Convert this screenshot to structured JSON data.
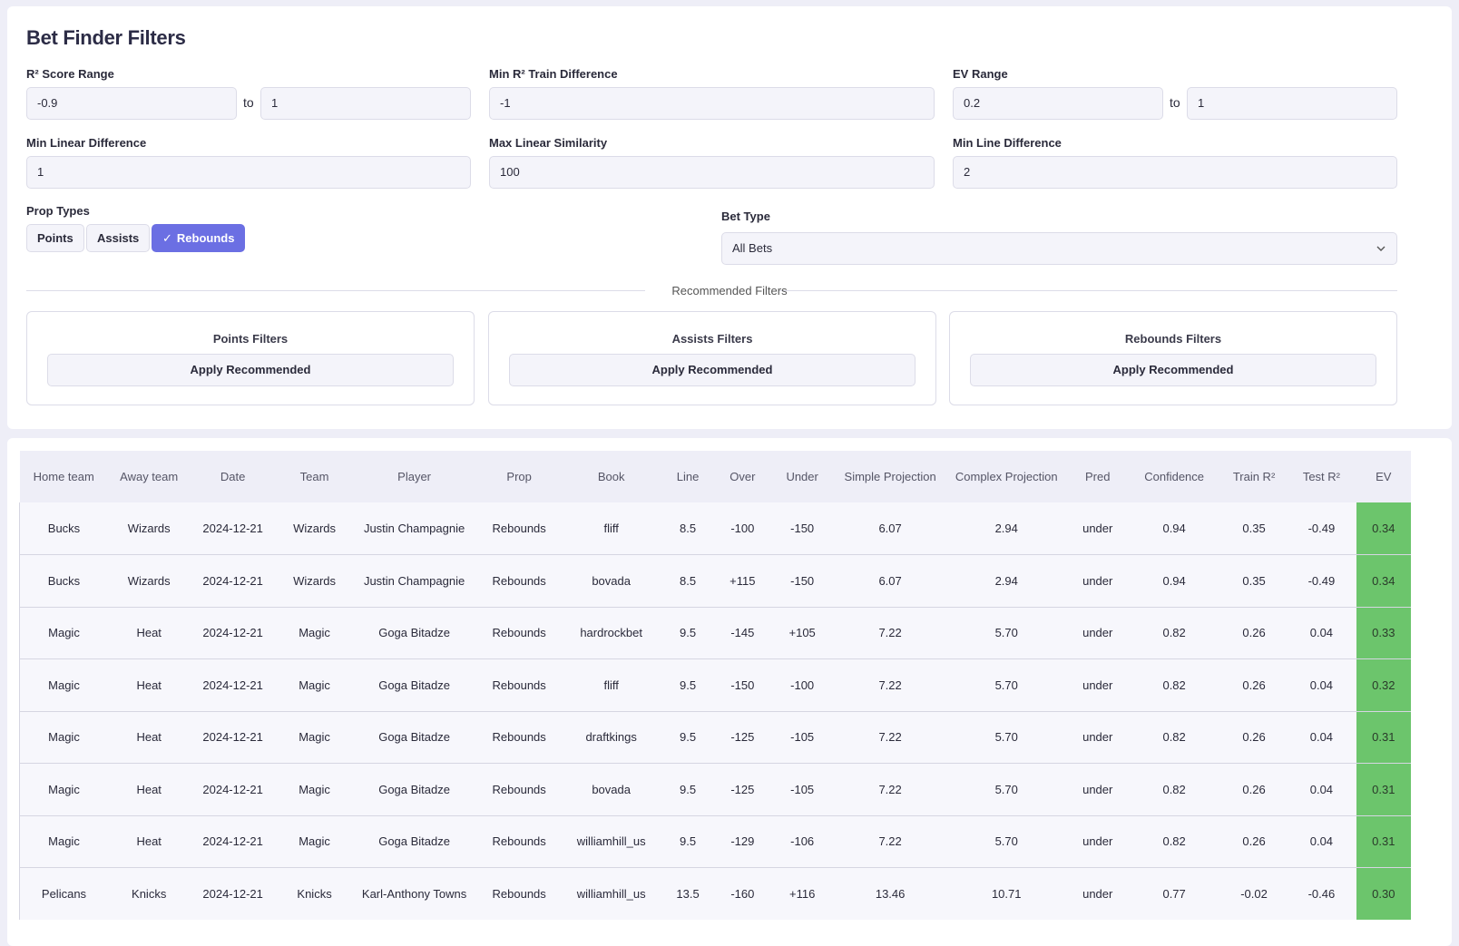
{
  "filters": {
    "title": "Bet Finder Filters",
    "r2_range": {
      "label": "R² Score Range",
      "min": "-0.9",
      "sep": "to",
      "max": "1"
    },
    "min_r2_train_diff": {
      "label": "Min R² Train Difference",
      "value": "-1"
    },
    "ev_range": {
      "label": "EV Range",
      "min": "0.2",
      "sep": "to",
      "max": "1"
    },
    "min_linear_diff": {
      "label": "Min Linear Difference",
      "value": "1"
    },
    "max_linear_sim": {
      "label": "Max Linear Similarity",
      "value": "100"
    },
    "min_line_diff": {
      "label": "Min Line Difference",
      "value": "2"
    },
    "prop_types": {
      "label": "Prop Types",
      "options": [
        {
          "label": "Points",
          "active": false
        },
        {
          "label": "Assists",
          "active": false
        },
        {
          "label": "Rebounds",
          "active": true
        }
      ]
    },
    "bet_type": {
      "label": "Bet Type",
      "value": "All Bets"
    },
    "recommended": {
      "heading": "Recommended Filters",
      "cards": [
        {
          "title": "Points Filters",
          "button": "Apply Recommended"
        },
        {
          "title": "Assists Filters",
          "button": "Apply Recommended"
        },
        {
          "title": "Rebounds Filters",
          "button": "Apply Recommended"
        }
      ]
    }
  },
  "table": {
    "columns": [
      "Home team",
      "Away team",
      "Date",
      "Team",
      "Player",
      "Prop",
      "Book",
      "Line",
      "Over",
      "Under",
      "Simple Projection",
      "Complex Projection",
      "Pred",
      "Confidence",
      "Train R²",
      "Test R²",
      "EV"
    ],
    "rows": [
      [
        "Bucks",
        "Wizards",
        "2024-12-21",
        "Wizards",
        "Justin Champagnie",
        "Rebounds",
        "fliff",
        "8.5",
        "-100",
        "-150",
        "6.07",
        "2.94",
        "under",
        "0.94",
        "0.35",
        "-0.49",
        "0.34"
      ],
      [
        "Bucks",
        "Wizards",
        "2024-12-21",
        "Wizards",
        "Justin Champagnie",
        "Rebounds",
        "bovada",
        "8.5",
        "+115",
        "-150",
        "6.07",
        "2.94",
        "under",
        "0.94",
        "0.35",
        "-0.49",
        "0.34"
      ],
      [
        "Magic",
        "Heat",
        "2024-12-21",
        "Magic",
        "Goga Bitadze",
        "Rebounds",
        "hardrockbet",
        "9.5",
        "-145",
        "+105",
        "7.22",
        "5.70",
        "under",
        "0.82",
        "0.26",
        "0.04",
        "0.33"
      ],
      [
        "Magic",
        "Heat",
        "2024-12-21",
        "Magic",
        "Goga Bitadze",
        "Rebounds",
        "fliff",
        "9.5",
        "-150",
        "-100",
        "7.22",
        "5.70",
        "under",
        "0.82",
        "0.26",
        "0.04",
        "0.32"
      ],
      [
        "Magic",
        "Heat",
        "2024-12-21",
        "Magic",
        "Goga Bitadze",
        "Rebounds",
        "draftkings",
        "9.5",
        "-125",
        "-105",
        "7.22",
        "5.70",
        "under",
        "0.82",
        "0.26",
        "0.04",
        "0.31"
      ],
      [
        "Magic",
        "Heat",
        "2024-12-21",
        "Magic",
        "Goga Bitadze",
        "Rebounds",
        "bovada",
        "9.5",
        "-125",
        "-105",
        "7.22",
        "5.70",
        "under",
        "0.82",
        "0.26",
        "0.04",
        "0.31"
      ],
      [
        "Magic",
        "Heat",
        "2024-12-21",
        "Magic",
        "Goga Bitadze",
        "Rebounds",
        "williamhill_us",
        "9.5",
        "-129",
        "-106",
        "7.22",
        "5.70",
        "under",
        "0.82",
        "0.26",
        "0.04",
        "0.31"
      ],
      [
        "Pelicans",
        "Knicks",
        "2024-12-21",
        "Knicks",
        "Karl-Anthony Towns",
        "Rebounds",
        "williamhill_us",
        "13.5",
        "-160",
        "+116",
        "13.46",
        "10.71",
        "under",
        "0.77",
        "-0.02",
        "-0.46",
        "0.30"
      ]
    ]
  },
  "colors": {
    "accent": "#6b6fe3",
    "ev_cell": "#6cc56c"
  }
}
